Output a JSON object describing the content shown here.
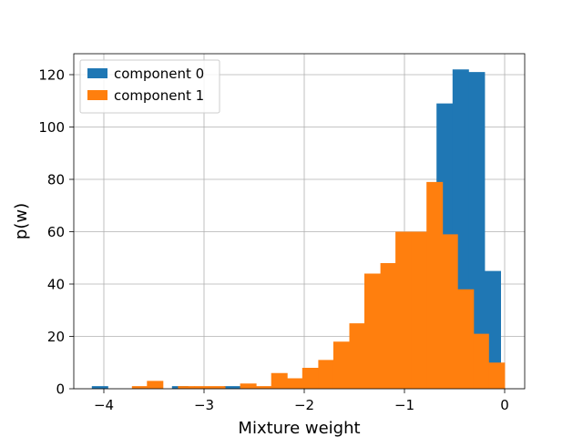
{
  "chart_data": {
    "type": "bar",
    "title": "",
    "xlabel": "Mixture weight",
    "ylabel": "p(w)",
    "xlim": [
      -4.3,
      0.2
    ],
    "ylim": [
      0,
      128
    ],
    "grid": true,
    "legend_position": "top-left",
    "x_ticks": [
      -4,
      -3,
      -2,
      -1,
      0
    ],
    "x_tick_labels": [
      "−4",
      "−3",
      "−2",
      "−1",
      "0"
    ],
    "y_ticks": [
      0,
      20,
      40,
      60,
      80,
      100,
      120
    ],
    "y_tick_labels": [
      "0",
      "20",
      "40",
      "60",
      "80",
      "100",
      "120"
    ],
    "series": [
      {
        "name": "component 0",
        "color": "#1f77b4",
        "bins": [
          [
            -4.12,
            -3.96,
            1
          ],
          [
            -3.32,
            -3.16,
            1
          ],
          [
            -2.8,
            -2.64,
            1
          ],
          [
            -0.68,
            -0.52,
            109
          ],
          [
            -0.52,
            -0.36,
            122
          ],
          [
            -0.36,
            -0.2,
            121
          ],
          [
            -0.2,
            -0.04,
            45
          ]
        ]
      },
      {
        "name": "component 1",
        "color": "#ff7f0e",
        "bins": [
          [
            -3.72,
            -3.57,
            1
          ],
          [
            -3.57,
            -3.41,
            3
          ],
          [
            -3.26,
            -3.1,
            1
          ],
          [
            -3.1,
            -2.95,
            1
          ],
          [
            -2.95,
            -2.79,
            1
          ],
          [
            -2.64,
            -2.48,
            2
          ],
          [
            -2.48,
            -2.33,
            1
          ],
          [
            -2.33,
            -2.17,
            6
          ],
          [
            -2.17,
            -2.02,
            4
          ],
          [
            -2.02,
            -1.86,
            8
          ],
          [
            -1.86,
            -1.71,
            11
          ],
          [
            -1.71,
            -1.55,
            18
          ],
          [
            -1.55,
            -1.4,
            25
          ],
          [
            -1.4,
            -1.24,
            44
          ],
          [
            -1.24,
            -1.09,
            48
          ],
          [
            -1.09,
            -0.93,
            60
          ],
          [
            -0.93,
            -0.78,
            60
          ],
          [
            -0.78,
            -0.62,
            79
          ],
          [
            -0.62,
            -0.47,
            59
          ],
          [
            -0.47,
            -0.31,
            38
          ],
          [
            -0.31,
            -0.16,
            21
          ],
          [
            -0.16,
            0.0,
            10
          ],
          [
            0.0,
            -0.0,
            0
          ]
        ]
      }
    ]
  }
}
